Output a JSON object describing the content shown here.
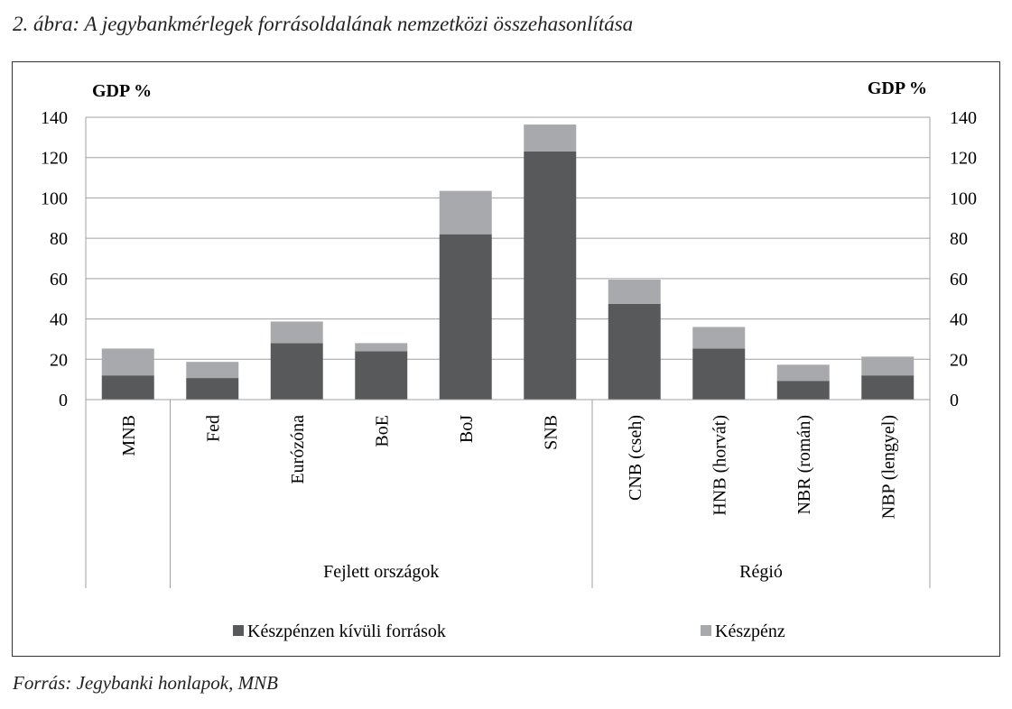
{
  "title": "2. ábra: A jegybankmérlegek forrásoldalának nemzetközi összehasonlítása",
  "source": "Forrás: Jegybanki honlapok, MNB",
  "chart_data": {
    "type": "bar",
    "stacked": true,
    "ylabel_left": "GDP %",
    "ylabel_right": "GDP %",
    "ylim": [
      0,
      140
    ],
    "yticks": [
      0,
      20,
      40,
      60,
      80,
      100,
      120,
      140
    ],
    "grid": true,
    "legend_position": "bottom",
    "categories": [
      "MNB",
      "Fed",
      "Eurózóna",
      "BoE",
      "BoJ",
      "SNB",
      "CNB (cseh)",
      "HNB (horvát)",
      "NBR (román)",
      "NBP (lengyel)"
    ],
    "groups": [
      {
        "label": "",
        "members": [
          "MNB"
        ]
      },
      {
        "label": "Fejlett országok",
        "members": [
          "Fed",
          "Eurózóna",
          "BoE",
          "BoJ",
          "SNB"
        ]
      },
      {
        "label": "Régió",
        "members": [
          "CNB (cseh)",
          "HNB (horvát)",
          "NBR (román)",
          "NBP (lengyel)"
        ]
      }
    ],
    "series": [
      {
        "name": "Készpénzen kívüli források",
        "color": "#58595b",
        "values": [
          12,
          10.7,
          28,
          24,
          82,
          123,
          47.5,
          25.3,
          9.3,
          12
        ]
      },
      {
        "name": "Készpénz",
        "color": "#a7a9ac",
        "values": [
          13.3,
          8,
          10.7,
          4,
          21.5,
          13.4,
          12,
          10.7,
          8,
          9.3
        ]
      }
    ]
  }
}
